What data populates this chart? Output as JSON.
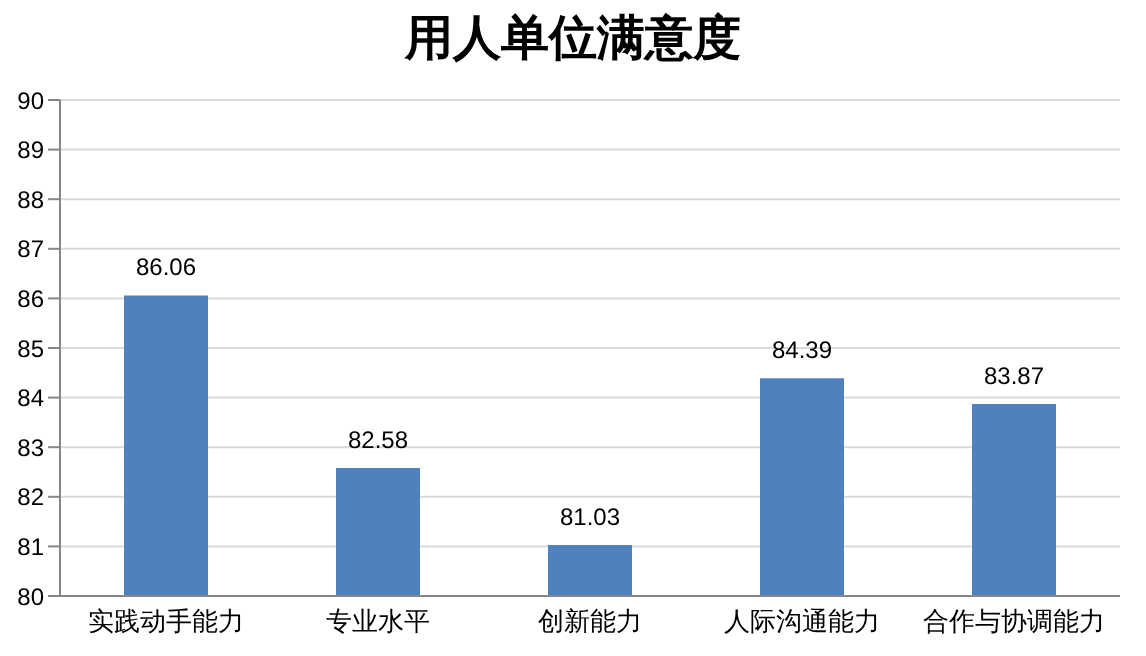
{
  "chart_data": {
    "type": "bar",
    "title": "用人单位满意度",
    "categories": [
      "实践动手能力",
      "专业水平",
      "创新能力",
      "人际沟通能力",
      "合作与协调能力"
    ],
    "values": [
      86.06,
      82.58,
      81.03,
      84.39,
      83.87
    ],
    "color": "#4f81bd",
    "ylim": [
      80,
      90
    ],
    "yticks": [
      80,
      81,
      82,
      83,
      84,
      85,
      86,
      87,
      88,
      89,
      90
    ],
    "grid": "y",
    "data_labels": true,
    "legend": false
  }
}
